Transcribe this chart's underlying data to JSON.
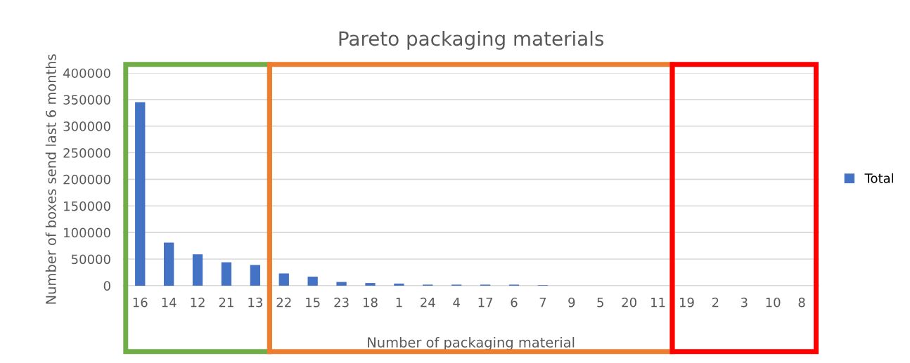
{
  "chart_data": {
    "type": "bar",
    "title": "Pareto packaging materials",
    "xlabel": "Number of packaging material",
    "ylabel": "Number of boxes send last 6 months",
    "categories": [
      "16",
      "14",
      "12",
      "21",
      "13",
      "22",
      "15",
      "23",
      "18",
      "1",
      "24",
      "4",
      "17",
      "6",
      "7",
      "9",
      "5",
      "20",
      "11",
      "19",
      "2",
      "3",
      "10",
      "8"
    ],
    "series": [
      {
        "name": "Total",
        "color": "#4472c4",
        "values": [
          345000,
          81000,
          59000,
          44000,
          39000,
          23000,
          17000,
          7000,
          5000,
          4000,
          2000,
          2000,
          2000,
          2000,
          1000,
          0,
          0,
          0,
          0,
          0,
          0,
          0,
          0,
          0
        ]
      }
    ],
    "ylim": [
      0,
      400000
    ],
    "yticks": [
      0,
      50000,
      100000,
      150000,
      200000,
      250000,
      300000,
      350000,
      400000
    ],
    "grid": "y",
    "legend": "right"
  }
}
